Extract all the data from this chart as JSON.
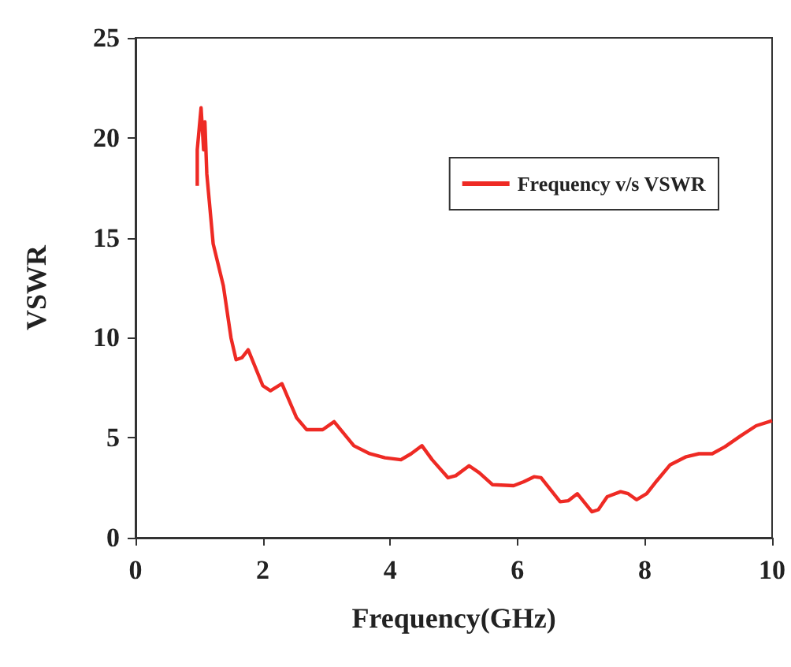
{
  "chart_data": {
    "type": "line",
    "xlabel": "Frequency(GHz)",
    "ylabel": "VSWR",
    "xlim": [
      0,
      10
    ],
    "xticks": [
      0,
      2,
      4,
      6,
      8,
      10
    ],
    "ylim": [
      0,
      25
    ],
    "yticks": [
      0,
      5,
      10,
      15,
      20,
      25
    ],
    "grid": false,
    "legend": "top right",
    "marker": "none",
    "line_style": "solid",
    "series": [
      {
        "name": "Frequency v/s VSWR",
        "color": "#ee2a24",
        "x": [
          0.97,
          0.97,
          1.03,
          1.07,
          1.09,
          1.12,
          1.22,
          1.38,
          1.5,
          1.58,
          1.67,
          1.77,
          2.0,
          2.12,
          2.3,
          2.53,
          2.69,
          2.94,
          3.12,
          3.43,
          3.68,
          3.92,
          4.17,
          4.33,
          4.5,
          4.66,
          4.91,
          5.03,
          5.24,
          5.4,
          5.61,
          5.94,
          6.1,
          6.26,
          6.37,
          6.67,
          6.8,
          6.94,
          7.17,
          7.27,
          7.41,
          7.62,
          7.74,
          7.87,
          8.03,
          8.19,
          8.4,
          8.65,
          8.85,
          9.06,
          9.26,
          9.51,
          9.75,
          10.0
        ],
        "values": [
          17.6,
          19.4,
          21.5,
          19.4,
          20.8,
          18.2,
          14.7,
          12.6,
          10.0,
          8.9,
          9.0,
          9.4,
          7.6,
          7.35,
          7.7,
          6.0,
          5.4,
          5.4,
          5.8,
          4.6,
          4.2,
          4.0,
          3.9,
          4.2,
          4.6,
          3.9,
          3.0,
          3.1,
          3.6,
          3.25,
          2.65,
          2.6,
          2.8,
          3.05,
          3.0,
          1.8,
          1.85,
          2.2,
          1.3,
          1.4,
          2.05,
          2.3,
          2.2,
          1.9,
          2.2,
          2.85,
          3.65,
          4.05,
          4.2,
          4.2,
          4.55,
          5.1,
          5.6,
          5.85
        ]
      }
    ]
  }
}
